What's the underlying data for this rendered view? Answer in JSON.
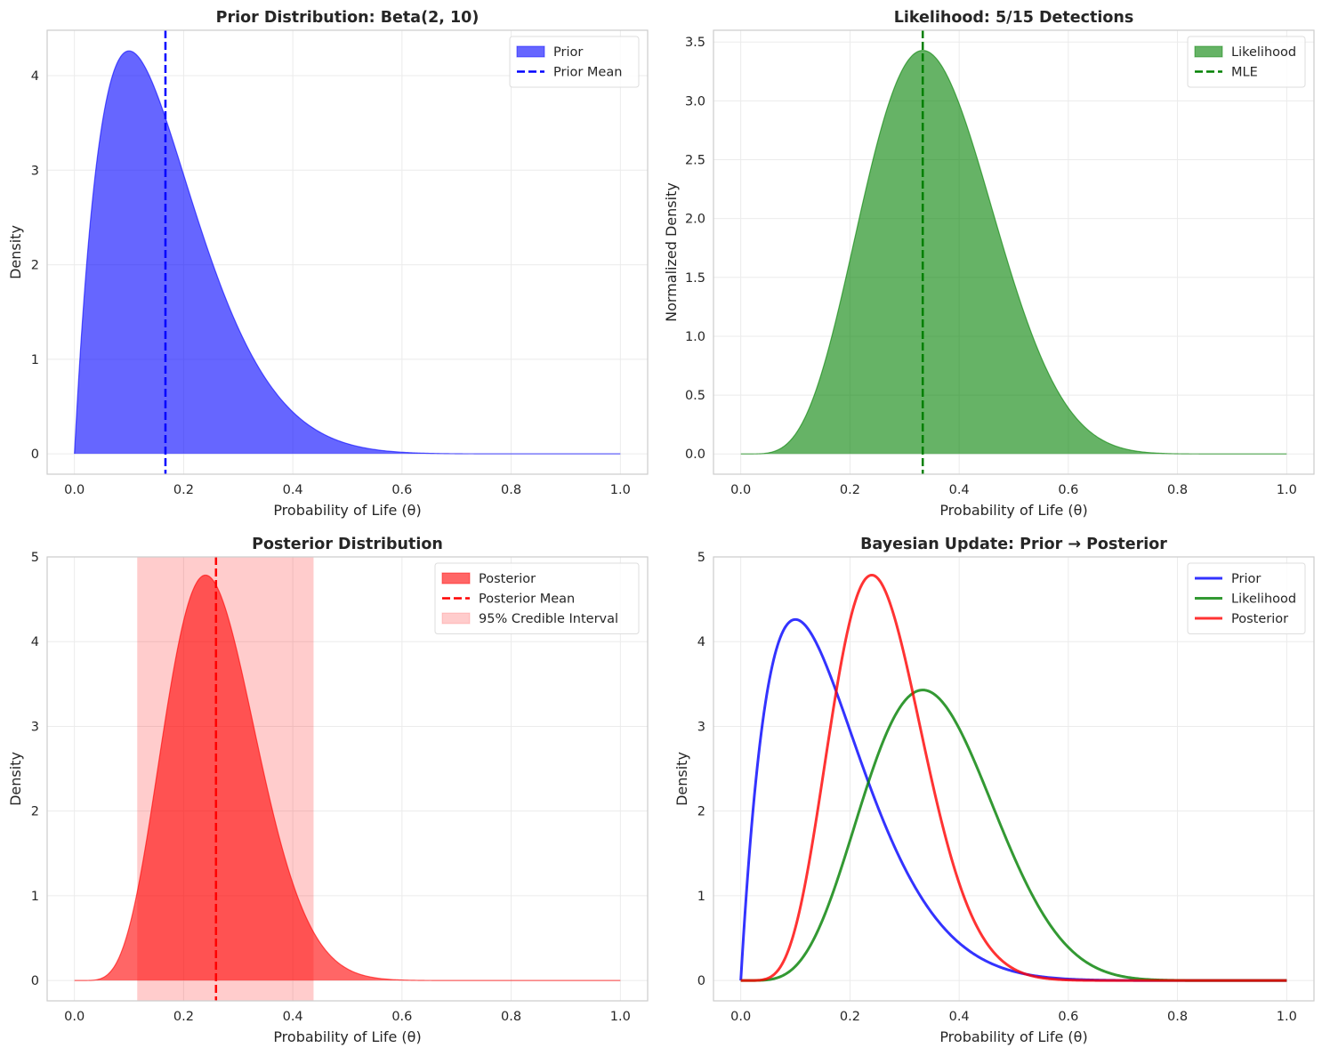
{
  "figure": {
    "layout": "2x2 grid"
  },
  "chart_data": [
    {
      "id": "prior",
      "type": "area",
      "title": "Prior Distribution: Beta(2, 10)",
      "xlabel": "Probability of Life (θ)",
      "ylabel": "Density",
      "xlim": [
        -0.05,
        1.05
      ],
      "ylim": [
        -0.215,
        4.48
      ],
      "xticks": [
        0.0,
        0.2,
        0.4,
        0.6,
        0.8,
        1.0
      ],
      "xtick_labels": [
        "0.0",
        "0.2",
        "0.4",
        "0.6",
        "0.8",
        "1.0"
      ],
      "yticks": [
        0,
        1,
        2,
        3,
        4
      ],
      "ytick_labels": [
        "0",
        "1",
        "2",
        "3",
        "4"
      ],
      "grid": true,
      "legend": {
        "position": "top-right",
        "entries": [
          {
            "label": "Prior",
            "kind": "patch",
            "color": "#0000ff",
            "alpha": 0.6
          },
          {
            "label": "Prior Mean",
            "kind": "dashed",
            "color": "#0000ff"
          }
        ]
      },
      "series": [
        {
          "name": "Prior",
          "kind": "fill",
          "distribution": "beta",
          "a": 2,
          "b": 10,
          "scale": 1,
          "color": "#0000ff",
          "alpha": 0.6,
          "peak": {
            "x": 0.1,
            "y": 4.26
          }
        }
      ],
      "vlines": [
        {
          "name": "Prior Mean",
          "x": 0.1667,
          "color": "#0000ff",
          "style": "dashed"
        }
      ]
    },
    {
      "id": "likelihood",
      "type": "area",
      "title": "Likelihood: 5/15 Detections",
      "xlabel": "Probability of Life (θ)",
      "ylabel": "Normalized Density",
      "xlim": [
        -0.05,
        1.05
      ],
      "ylim": [
        -0.172,
        3.6
      ],
      "xticks": [
        0.0,
        0.2,
        0.4,
        0.6,
        0.8,
        1.0
      ],
      "xtick_labels": [
        "0.0",
        "0.2",
        "0.4",
        "0.6",
        "0.8",
        "1.0"
      ],
      "yticks": [
        0.0,
        0.5,
        1.0,
        1.5,
        2.0,
        2.5,
        3.0,
        3.5
      ],
      "ytick_labels": [
        "0.0",
        "0.5",
        "1.0",
        "1.5",
        "2.0",
        "2.5",
        "3.0",
        "3.5"
      ],
      "grid": true,
      "legend": {
        "position": "top-right",
        "entries": [
          {
            "label": "Likelihood",
            "kind": "patch",
            "color": "#008000",
            "alpha": 0.6
          },
          {
            "label": "MLE",
            "kind": "dashed",
            "color": "#008000"
          }
        ]
      },
      "series": [
        {
          "name": "Likelihood",
          "kind": "fill",
          "distribution": "beta",
          "a": 6,
          "b": 11,
          "scale": 1,
          "color": "#008000",
          "alpha": 0.6,
          "peak": {
            "x": 0.333,
            "y": 3.43
          }
        }
      ],
      "vlines": [
        {
          "name": "MLE",
          "x": 0.3333,
          "color": "#008000",
          "style": "dashed"
        }
      ]
    },
    {
      "id": "posterior",
      "type": "area",
      "title": "Posterior Distribution",
      "xlabel": "Probability of Life (θ)",
      "ylabel": "Density",
      "xlim": [
        -0.05,
        1.05
      ],
      "ylim": [
        -0.24,
        5.0
      ],
      "xticks": [
        0.0,
        0.2,
        0.4,
        0.6,
        0.8,
        1.0
      ],
      "xtick_labels": [
        "0.0",
        "0.2",
        "0.4",
        "0.6",
        "0.8",
        "1.0"
      ],
      "yticks": [
        0,
        1,
        2,
        3,
        4,
        5
      ],
      "ytick_labels": [
        "0",
        "1",
        "2",
        "3",
        "4",
        "5"
      ],
      "grid": true,
      "legend": {
        "position": "top-right",
        "entries": [
          {
            "label": "Posterior",
            "kind": "patch",
            "color": "#ff0000",
            "alpha": 0.6
          },
          {
            "label": "Posterior Mean",
            "kind": "dashed",
            "color": "#ff0000"
          },
          {
            "label": "95% Credible Interval",
            "kind": "patch",
            "color": "#ff0000",
            "alpha": 0.2
          }
        ]
      },
      "series": [
        {
          "name": "Posterior",
          "kind": "fill",
          "distribution": "beta",
          "a": 7,
          "b": 20,
          "scale": 1,
          "color": "#ff0000",
          "alpha": 0.6,
          "peak": {
            "x": 0.24,
            "y": 4.78
          }
        }
      ],
      "vlines": [
        {
          "name": "Posterior Mean",
          "x": 0.2593,
          "color": "#ff0000",
          "style": "dashed"
        }
      ],
      "spans": [
        {
          "name": "95% Credible Interval",
          "x0": 0.115,
          "x1": 0.438,
          "color": "#ff0000",
          "alpha": 0.2
        }
      ]
    },
    {
      "id": "update",
      "type": "line",
      "title": "Bayesian Update: Prior → Posterior",
      "xlabel": "Probability of Life (θ)",
      "ylabel": "Density",
      "xlim": [
        -0.05,
        1.05
      ],
      "ylim": [
        -0.24,
        5.0
      ],
      "xticks": [
        0.0,
        0.2,
        0.4,
        0.6,
        0.8,
        1.0
      ],
      "xtick_labels": [
        "0.0",
        "0.2",
        "0.4",
        "0.6",
        "0.8",
        "1.0"
      ],
      "yticks": [
        0,
        1,
        2,
        3,
        4,
        5
      ],
      "ytick_labels": [
        "0",
        "1",
        "2",
        "3",
        "4",
        "5"
      ],
      "grid": true,
      "legend": {
        "position": "top-right",
        "entries": [
          {
            "label": "Prior",
            "kind": "line",
            "color": "#0000ff",
            "alpha": 0.8
          },
          {
            "label": "Likelihood",
            "kind": "line",
            "color": "#008000",
            "alpha": 0.8
          },
          {
            "label": "Posterior",
            "kind": "line",
            "color": "#ff0000",
            "alpha": 0.8
          }
        ]
      },
      "series": [
        {
          "name": "Prior",
          "kind": "line",
          "distribution": "beta",
          "a": 2,
          "b": 10,
          "scale": 1,
          "color": "#0000ff",
          "alpha": 0.8,
          "peak": {
            "x": 0.1,
            "y": 4.26
          }
        },
        {
          "name": "Likelihood",
          "kind": "line",
          "distribution": "beta",
          "a": 6,
          "b": 11,
          "scale": 1,
          "color": "#008000",
          "alpha": 0.8,
          "peak": {
            "x": 0.333,
            "y": 3.43
          }
        },
        {
          "name": "Posterior",
          "kind": "line",
          "distribution": "beta",
          "a": 7,
          "b": 20,
          "scale": 1,
          "color": "#ff0000",
          "alpha": 0.8,
          "peak": {
            "x": 0.24,
            "y": 4.78
          }
        }
      ]
    }
  ]
}
